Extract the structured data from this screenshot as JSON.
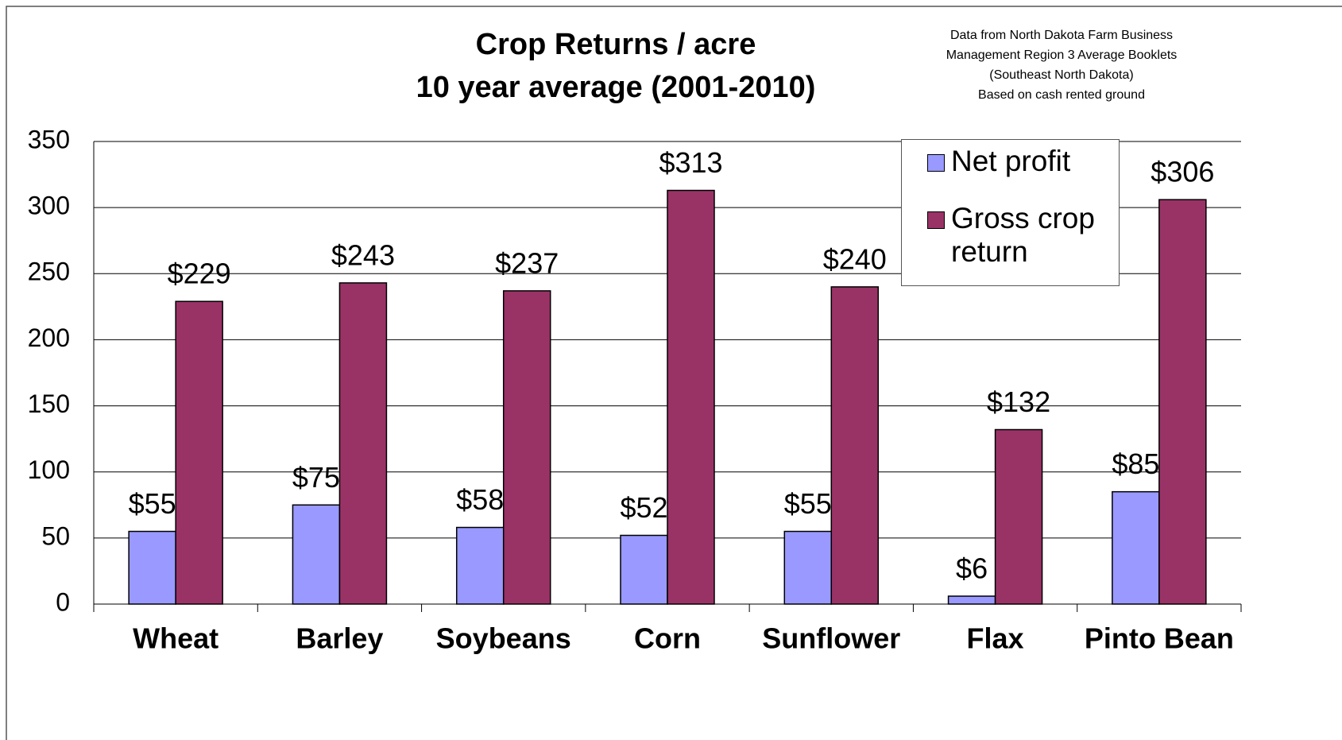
{
  "chart_data": {
    "type": "bar",
    "title": "Crop Returns / acre",
    "subtitle": "10 year average (2001-2010)",
    "note": [
      "Data from North Dakota Farm Business",
      "Management Region 3  Average Booklets",
      "(Southeast North Dakota)",
      "Based on cash rented ground"
    ],
    "categories": [
      "Wheat",
      "Barley",
      "Soybeans",
      "Corn",
      "Sunflower",
      "Flax",
      "Pinto Bean"
    ],
    "series": [
      {
        "name": "Net profit",
        "color": "#9999ff",
        "values": [
          55,
          75,
          58,
          52,
          55,
          6,
          85
        ],
        "value_labels": [
          "$55",
          "$75",
          "$58",
          "$52",
          "$55",
          "$6",
          "$85"
        ]
      },
      {
        "name": "Gross crop return",
        "color": "#993366",
        "values": [
          229,
          243,
          237,
          313,
          240,
          132,
          306
        ],
        "value_labels": [
          "$229",
          "$243",
          "$237",
          "$313",
          "$240",
          "$132",
          "$306"
        ]
      }
    ],
    "ylim": [
      0,
      350
    ],
    "yticks": [
      0,
      50,
      100,
      150,
      200,
      250,
      300,
      350
    ],
    "grid": true,
    "legend": "top-right"
  }
}
